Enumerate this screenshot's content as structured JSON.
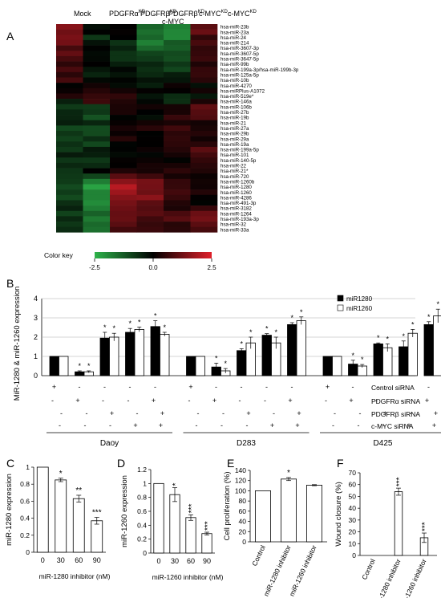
{
  "panels": {
    "A": "A",
    "B": "B",
    "C": "C",
    "D": "D",
    "E": "E",
    "F": "F"
  },
  "heatmap": {
    "columns": [
      "Mock",
      "PDGFRα",
      "PDGFRβ",
      "PDGFRβ",
      "c-MYC",
      "c-MYC"
    ],
    "column_superscripts": [
      "",
      "KD",
      "KD",
      "KD",
      "KD",
      "KD"
    ],
    "column_line2": [
      "",
      "",
      "",
      "c-MYC",
      "",
      ""
    ],
    "rows": [
      "hsa-miR-23b",
      "hsa-miR-23a",
      "hsa-miR-24",
      "hsa-miR-214",
      "hsa-miR-3607-3p",
      "hsa-miR-3607-5p",
      "hsa-miR-3647-5p",
      "hsa-miR-99b",
      "hsa-miR-199a-3p/hsa-miR-199b-3p",
      "hsa-miR-125a-5p",
      "hsa-miR-10b",
      "hsa-miR-4270",
      "hsa-miRPlus-A1072",
      "hsa-miR-519e*",
      "hsa-miR-146a",
      "hsa-miR-106b",
      "hsa-miR-27b",
      "hsa-miR-19b",
      "hsa-miR-21",
      "hsa-miR-27a",
      "hsa-miR-29b",
      "hsa-miR-29a",
      "hsa-miR-19a",
      "hsa-miR-199a-5p",
      "hsa-miR-101",
      "hsa-miR-140-5p",
      "hsa-miR-22",
      "hsa-miR-21*",
      "hsa-miR-720",
      "hsa-miR-1260b",
      "hsa-miR-1280",
      "hsa-miR-1260",
      "hsa-miR-4286",
      "hsa-miR-491-3p",
      "hsa-miR-3182",
      "hsa-miR-1264",
      "hsa-miR-193a-3p",
      "hsa-miR-32",
      "hsa-miR-33a"
    ],
    "color_key_label": "Color key",
    "color_key_ticks": [
      "-2.5",
      "0.0",
      "2.5"
    ],
    "colors": {
      "low": "#2db34a",
      "mid": "#000000",
      "high": "#e0202a"
    }
  },
  "chart_data": [
    {
      "panel": "B",
      "type": "bar",
      "ylabel": "MiR-1280 & miR-1260 expression",
      "ylim": [
        0,
        4
      ],
      "yticks": [
        "0",
        "1",
        "2",
        "3",
        "4"
      ],
      "grid": true,
      "legend_position": "top-right",
      "series": [
        {
          "name": "miR1280",
          "color": "#000000",
          "values": [
            1,
            0.2,
            1.95,
            2.25,
            2.55,
            1,
            0.45,
            1.3,
            2.1,
            2.65,
            1,
            0.6,
            1.65,
            1.5,
            2.65
          ],
          "errors": [
            0,
            0.05,
            0.3,
            0.2,
            0.3,
            0,
            0.2,
            0.1,
            0.08,
            0.1,
            0,
            0.2,
            0.05,
            0.3,
            0.15
          ]
        },
        {
          "name": "miR1260",
          "color": "#ffffff",
          "values": [
            1,
            0.2,
            2.0,
            2.4,
            2.15,
            1,
            0.25,
            1.7,
            1.7,
            2.85,
            1,
            0.5,
            1.45,
            2.2,
            3.1
          ],
          "errors": [
            0,
            0.05,
            0.2,
            0.12,
            0.1,
            0,
            0.12,
            0.3,
            0.3,
            0.2,
            0,
            0.08,
            0.2,
            0.2,
            0.35
          ]
        }
      ],
      "significance": [
        "",
        "*",
        "*",
        "*",
        "*",
        "",
        "*",
        "*",
        "*",
        "*",
        "",
        "*",
        "*",
        "*",
        "*"
      ],
      "condition_labels": [
        "Control siRNA",
        "PDGFRα siRNA",
        "PDGFRβ siRNA",
        "c-MYC siRNA"
      ],
      "condition_matrix": [
        [
          "+",
          "-",
          "-",
          "-",
          "-",
          "+",
          "-",
          "-",
          "-",
          "-",
          "+",
          "-",
          "-",
          "-",
          "-"
        ],
        [
          "-",
          "+",
          "-",
          "-",
          "+",
          "-",
          "+",
          "-",
          "-",
          "+",
          "-",
          "+",
          "-",
          "-",
          "+"
        ],
        [
          "-",
          "-",
          "+",
          "-",
          "+",
          "-",
          "-",
          "+",
          "-",
          "+",
          "-",
          "-",
          "+",
          "-",
          "+"
        ],
        [
          "-",
          "-",
          "-",
          "+",
          "+",
          "-",
          "-",
          "-",
          "+",
          "+",
          "-",
          "-",
          "-",
          "+",
          "+"
        ]
      ],
      "groups": [
        "Daoy",
        "D283",
        "D425"
      ]
    },
    {
      "panel": "C",
      "type": "bar",
      "categories": [
        "0",
        "30",
        "60",
        "90"
      ],
      "values": [
        1.0,
        0.85,
        0.63,
        0.37
      ],
      "errors": [
        0,
        0.02,
        0.04,
        0.04
      ],
      "significance": [
        "",
        "*",
        "**",
        "***"
      ],
      "ylabel": "miR-1280 expression",
      "xlabel": "miR-1280 inhibitor  (nM)",
      "ylim": [
        0,
        1
      ],
      "yticks": [
        "0",
        "0.2",
        "0.4",
        "0.6",
        "0.8",
        "1"
      ]
    },
    {
      "panel": "D",
      "type": "bar",
      "categories": [
        "0",
        "30",
        "60",
        "90"
      ],
      "values": [
        1.0,
        0.84,
        0.51,
        0.28
      ],
      "errors": [
        0,
        0.1,
        0.04,
        0.02
      ],
      "significance": [
        "",
        "*",
        "***",
        "***"
      ],
      "ylabel": "miR-1260 expression",
      "xlabel": "miR-1260 inhibitor  (nM)",
      "ylim": [
        0,
        1.2
      ],
      "yticks": [
        "0",
        "0.2",
        "0.4",
        "0.6",
        "0.8",
        "1",
        "1.2"
      ]
    },
    {
      "panel": "E",
      "type": "bar",
      "categories": [
        "Control",
        "miR-1280 inhibitor",
        "miR-1260 inhibitor"
      ],
      "values": [
        100,
        123,
        111
      ],
      "errors": [
        0,
        3,
        1
      ],
      "significance": [
        "",
        "*",
        ""
      ],
      "ylabel": "Cell proliferation (%)",
      "ylim": [
        0,
        140
      ],
      "yticks": [
        "0",
        "20",
        "40",
        "60",
        "80",
        "100",
        "120",
        "140"
      ]
    },
    {
      "panel": "F",
      "type": "bar",
      "categories": [
        "Control",
        "miR-1280 inhibitor",
        "miR-1260 inhibitor"
      ],
      "values": [
        0,
        54,
        15
      ],
      "errors": [
        0,
        3,
        4
      ],
      "significance": [
        "",
        "***",
        "***"
      ],
      "ylabel": "Wound closure (%)",
      "ylim": [
        0,
        70
      ],
      "yticks": [
        "0",
        "10",
        "20",
        "30",
        "40",
        "50",
        "60",
        "70"
      ]
    }
  ]
}
